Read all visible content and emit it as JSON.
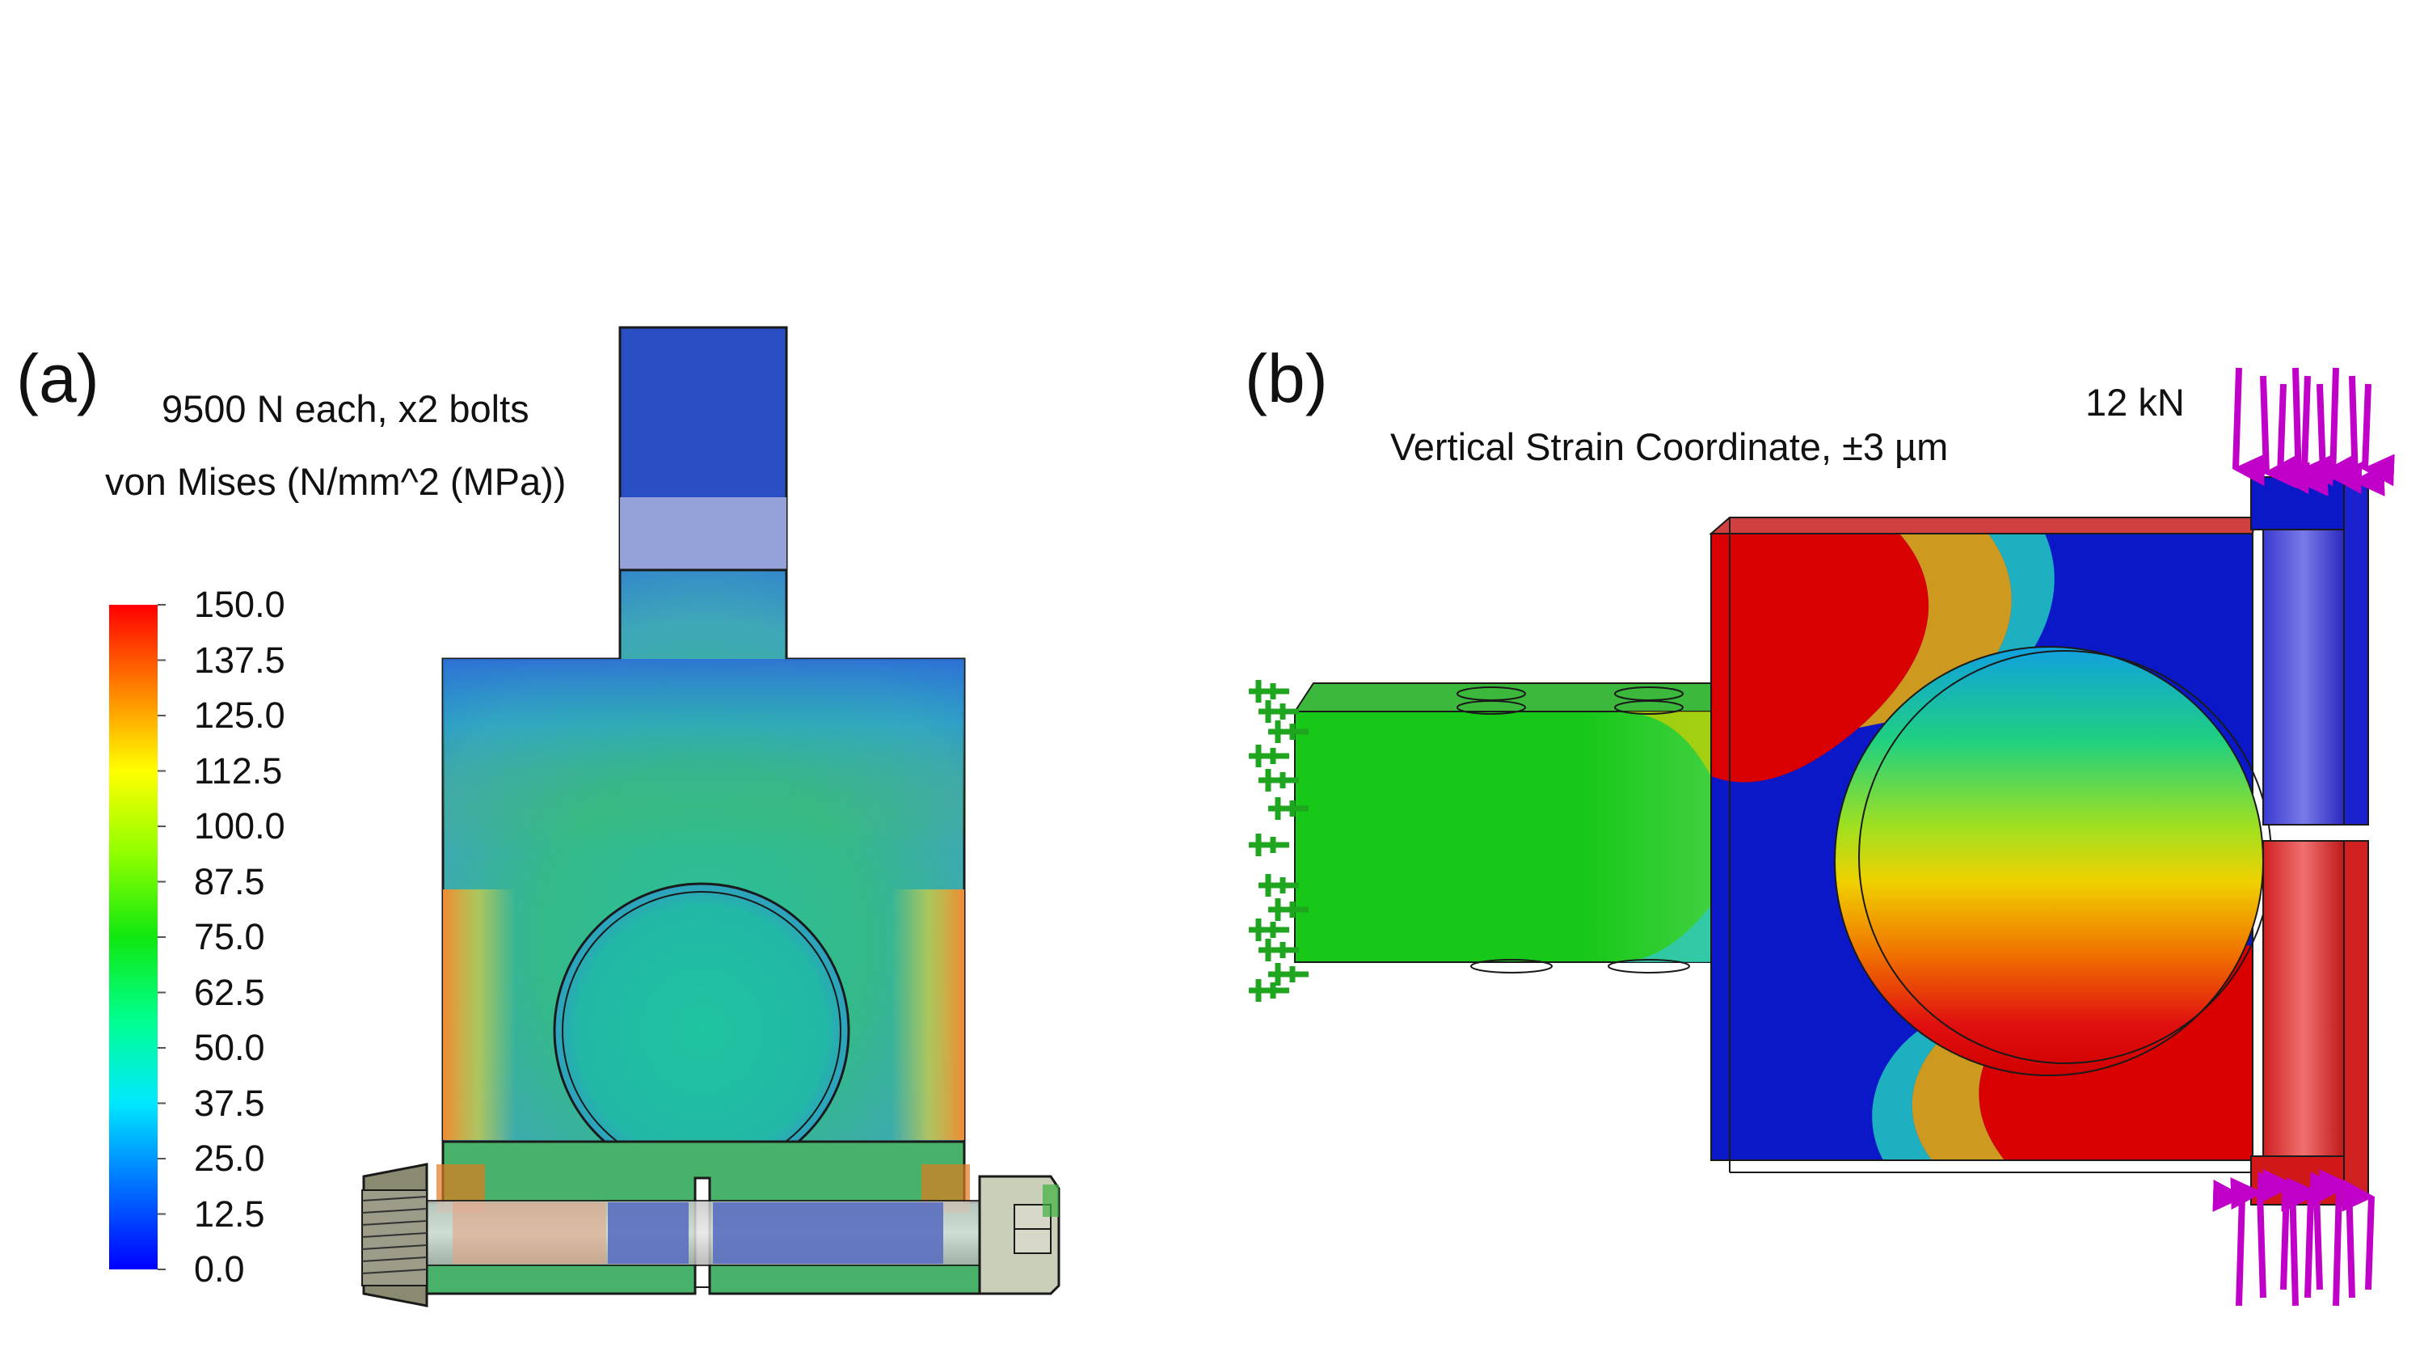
{
  "panel_a": {
    "letter": "(a)",
    "load_caption": "9500 N each, x2 bolts",
    "stress_caption": "von Mises (N/mm^2 (MPa))",
    "colorbar_ticks": [
      "150.0",
      "137.5",
      "125.0",
      "112.5",
      "100.0",
      "87.5",
      "75.0",
      "62.5",
      "50.0",
      "37.5",
      "25.0",
      "12.5",
      "0.0"
    ],
    "colormap": [
      "#0000ff",
      "#0080ff",
      "#00ffff",
      "#00ff80",
      "#00ff00",
      "#80ff00",
      "#ffff00",
      "#ff8000",
      "#ff0000"
    ]
  },
  "panel_b": {
    "letter": "(b)",
    "strain_caption": "Vertical Strain Coordinate, ±3 µm",
    "force_caption": "12 kN"
  },
  "colors": {
    "arrow_magenta": "#c000c8",
    "fixture_green": "#1fa51f",
    "outline": "#1a1a1a"
  }
}
